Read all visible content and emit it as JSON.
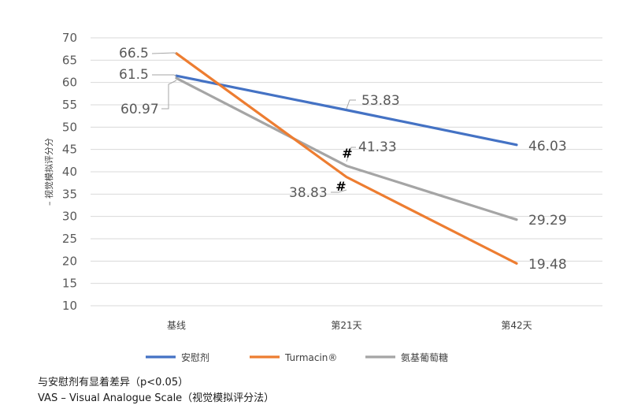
{
  "chart_data": {
    "type": "line",
    "categories": [
      "基线",
      "第21天",
      "第42天"
    ],
    "ylabel": "– 视觉模拟评分分",
    "ylim": [
      10,
      70
    ],
    "yticks": [
      10,
      15,
      20,
      25,
      30,
      35,
      40,
      45,
      50,
      55,
      60,
      65,
      70
    ],
    "grid": true,
    "legend_position": "bottom",
    "series": [
      {
        "name": "安慰剂",
        "color": "#4472C4",
        "values": [
          61.5,
          53.83,
          46.03
        ],
        "labels": [
          "61.5",
          "53.83",
          "46.03"
        ]
      },
      {
        "name": "Turmacin®",
        "color": "#ED7D31",
        "values": [
          66.5,
          38.83,
          19.48
        ],
        "labels": [
          "66.5",
          "38.83",
          "19.48"
        ]
      },
      {
        "name": "氨基葡萄糖",
        "color": "#A5A5A5",
        "values": [
          60.97,
          41.33,
          29.29
        ],
        "labels": [
          "60.97",
          "41.33",
          "29.29"
        ]
      }
    ],
    "annotations": [
      "#",
      "#"
    ]
  },
  "footnotes": {
    "line1": "与安慰剂有显着差异（p<0.05）",
    "line2": "VAS – Visual Analogue Scale（视觉模拟评分法）"
  }
}
